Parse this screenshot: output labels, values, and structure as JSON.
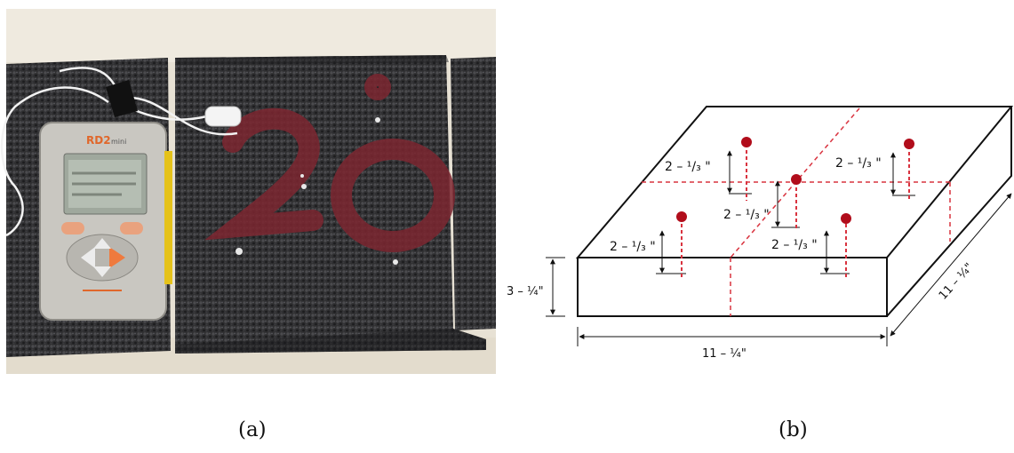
{
  "captions": {
    "a": "(a)",
    "b": "(b)"
  },
  "photo": {
    "device_brand": "RD2",
    "device_model": "mini",
    "specimen_marking": "20"
  },
  "diagram": {
    "dim_height": "3 – ¼\"",
    "dim_width": "11 – ¼\"",
    "dim_depth": "11 – ¼\"",
    "depth_labels": [
      "2 – ¹/₃ \"",
      "2 – ¹/₃ \"",
      "2 – ¹/₃ \"",
      "2 – ¹/₃ \"",
      "2 – ¹/₃ \""
    ],
    "colors": {
      "marker": "#b10d1b",
      "guide": "#d9333f",
      "line": "#111111"
    }
  }
}
